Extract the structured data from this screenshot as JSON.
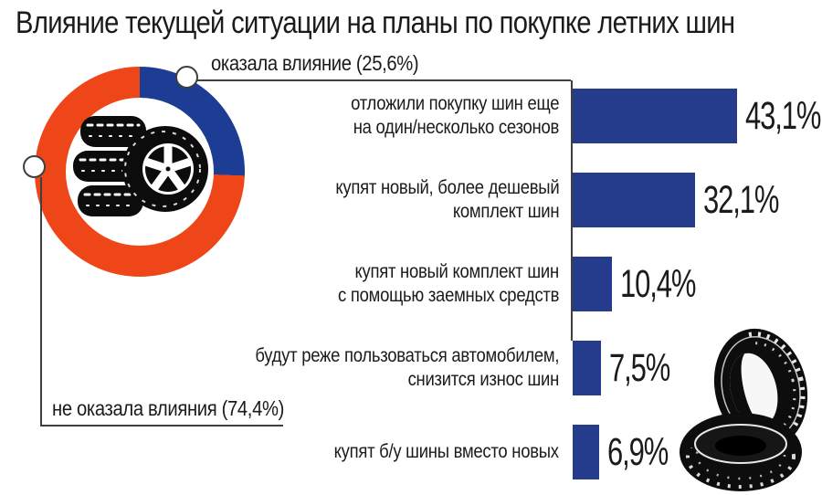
{
  "title": "Влияние текущей ситуации на планы по покупке летних шин",
  "colors": {
    "accent_red": "#ef4619",
    "donut_blue": "#1d3c94",
    "bar_blue": "#253b8c",
    "line_gray": "#3f3f3f",
    "text": "#1b1b1b"
  },
  "icons": {
    "donut_center": "stacked-tires-icon",
    "bottom_right": "two-tires-icon"
  },
  "donut": {
    "label_influenced": "оказала влияние (25,6%)",
    "label_not_influenced": "не оказала влияния (74,4%)"
  },
  "bars": [
    {
      "lines": [
        "отложили покупку шин еще",
        "на один/несколько сезонов"
      ],
      "value_label": "43,1%"
    },
    {
      "lines": [
        "купят новый, более дешевый",
        "комплект шин"
      ],
      "value_label": "32,1%"
    },
    {
      "lines": [
        "купят новый комплект шин",
        "с помощью заемных средств"
      ],
      "value_label": "10,4%"
    },
    {
      "lines": [
        "будут реже пользоваться автомобилем,",
        "снизится износ шин"
      ],
      "value_label": "7,5%"
    },
    {
      "lines": [
        "купят б/у шины вместо новых"
      ],
      "value_label": "6,9%"
    }
  ],
  "chart_data": [
    {
      "type": "pie",
      "subtype": "donut",
      "title": "Влияние текущей ситуации на планы по покупке летних шин",
      "slices": [
        {
          "label": "оказала влияние",
          "value": 25.6,
          "color": "#1d3c94"
        },
        {
          "label": "не оказала влияния",
          "value": 74.4,
          "color": "#ef4619"
        }
      ],
      "start_angle_deg": 0,
      "direction": "clockwise",
      "legend_position": "callouts"
    },
    {
      "type": "bar",
      "orientation": "horizontal",
      "categories": [
        "отложили покупку шин еще на один/несколько сезонов",
        "купят новый, более дешевый комплект шин",
        "купят новый комплект шин с помощью заемных средств",
        "будут реже пользоваться автомобилем, снизится износ шин",
        "купят б/у шины вместо новых"
      ],
      "values": [
        43.1,
        32.1,
        10.4,
        7.5,
        6.9
      ],
      "value_labels": [
        "43,1%",
        "32,1%",
        "10,4%",
        "7,5%",
        "6,9%"
      ],
      "xlim": [
        0,
        45
      ],
      "grid": false,
      "bar_color": "#253b8c"
    }
  ]
}
